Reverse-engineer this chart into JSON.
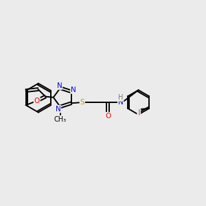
{
  "bg_color": "#ebebeb",
  "bond_color": "#000000",
  "atom_colors": {
    "N": "#0000ff",
    "O": "#ff0000",
    "S": "#b8a000",
    "I": "#cc44aa",
    "H": "#7a7a7a",
    "C": "#000000"
  },
  "lw": 1.4,
  "fontsize": 7.5
}
